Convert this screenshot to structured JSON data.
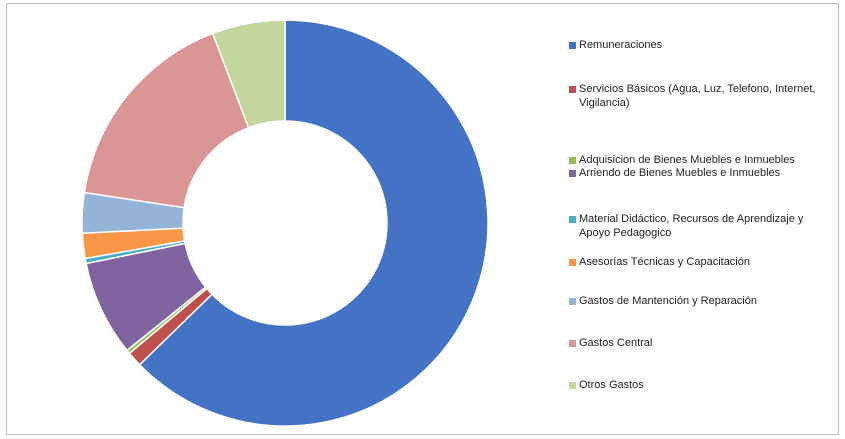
{
  "chart_data": {
    "type": "pie",
    "donut": true,
    "title": "",
    "legend_position": "right",
    "series": [
      {
        "name": "Remuneraciones",
        "value": 62.7,
        "color": "#4472C4"
      },
      {
        "name": "Servicios Básicos (Agua, Luz, Telefono, Internet, Vigilancia)",
        "value": 1.2,
        "color": "#C0504D"
      },
      {
        "name": "Adquisicion de Bienes Muebles e Inmuebles",
        "value": 0.3,
        "color": "#9BBB59"
      },
      {
        "name": "Arriendo de Bienes Muebles e Inmuebles",
        "value": 7.6,
        "color": "#8064A2"
      },
      {
        "name": "Material Didáctico, Recursos de Aprendizaje y Apoyo Pedagogico",
        "value": 0.4,
        "color": "#4BACC6"
      },
      {
        "name": "Asesorías Técnicas y Capacitación",
        "value": 2.0,
        "color": "#F79646"
      },
      {
        "name": "Gastos de Mantención y Reparación",
        "value": 3.2,
        "color": "#95B3D7"
      },
      {
        "name": "Gastos Central",
        "value": 16.8,
        "color": "#D99694"
      },
      {
        "name": "Otros  Gastos",
        "value": 5.8,
        "color": "#C3D69B"
      }
    ]
  }
}
